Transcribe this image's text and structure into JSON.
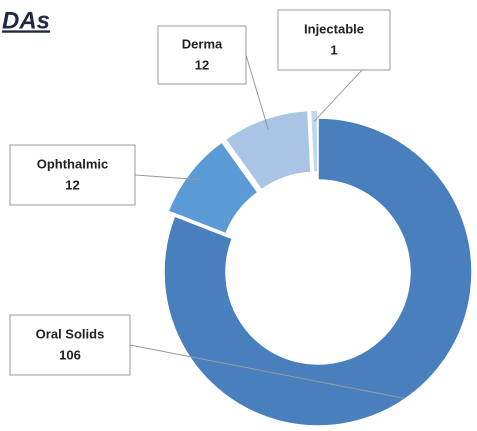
{
  "chart_data": {
    "type": "donut",
    "title": "DAs",
    "categories": [
      "Oral Solids",
      "Ophthalmic",
      "Derma",
      "Injectable"
    ],
    "values": [
      106,
      12,
      12,
      1
    ],
    "colors": [
      "#4a7fbd",
      "#5b9bd5",
      "#a9c4e4",
      "#c2d6ee"
    ]
  }
}
